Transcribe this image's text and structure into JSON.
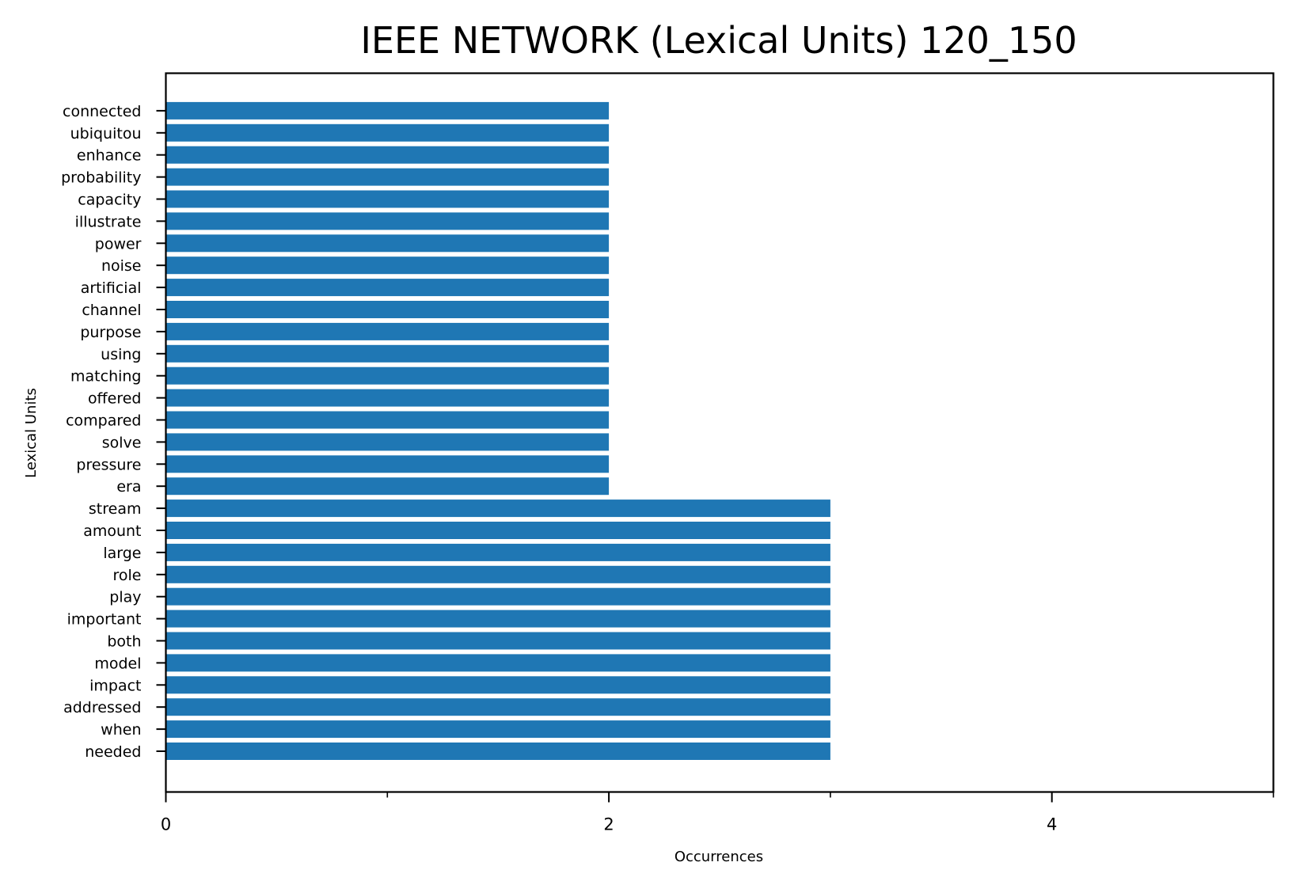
{
  "chart_data": {
    "type": "bar",
    "orientation": "horizontal",
    "title": "IEEE NETWORK (Lexical Units) 120_150",
    "xlabel": "Occurrences",
    "ylabel": "Lexical Units",
    "xlim": [
      0,
      5
    ],
    "x_ticks_major": [
      0,
      2,
      4
    ],
    "x_ticks_minor": [
      1,
      3,
      5
    ],
    "grid": false,
    "bar_color": "#1f77b4",
    "categories": [
      "needed",
      "when",
      "addressed",
      "impact",
      "model",
      "both",
      "important",
      "play",
      "role",
      "large",
      "amount",
      "stream",
      "era",
      "pressure",
      "solve",
      "compared",
      "offered",
      "matching",
      "using",
      "purpose",
      "channel",
      "artificial",
      "noise",
      "power",
      "illustrate",
      "capacity",
      "probability",
      "enhance",
      "ubiquitou",
      "connected"
    ],
    "values": [
      3,
      3,
      3,
      3,
      3,
      3,
      3,
      3,
      3,
      3,
      3,
      3,
      2,
      2,
      2,
      2,
      2,
      2,
      2,
      2,
      2,
      2,
      2,
      2,
      2,
      2,
      2,
      2,
      2,
      2
    ]
  }
}
